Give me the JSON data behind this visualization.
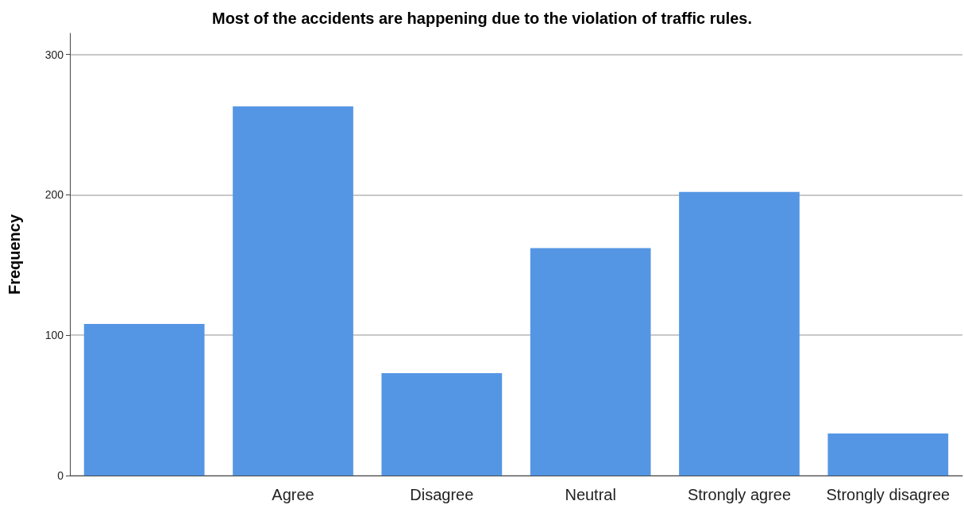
{
  "chart_data": {
    "type": "bar",
    "title": "Most of the accidents are happening due to the violation of traffic rules.",
    "ylabel": "Frequency",
    "categories": [
      null,
      "Agree",
      "Disagree",
      "Neutral",
      "Strongly agree",
      "Strongly disagree"
    ],
    "values": [
      108,
      263,
      73,
      162,
      202,
      30
    ],
    "color": "#5596e4",
    "ylim": [
      0,
      315
    ],
    "yticks": [
      0,
      100,
      200,
      300
    ],
    "grid": "y"
  }
}
